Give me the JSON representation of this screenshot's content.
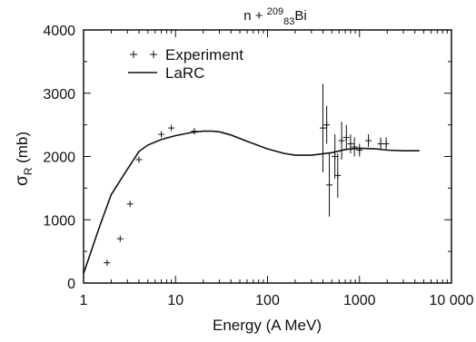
{
  "chart_data": {
    "type": "line",
    "title": {
      "prefix": "n + ",
      "mass_number": "209",
      "atomic_number": "83",
      "element": "Bi"
    },
    "xlabel": "Energy (A MeV)",
    "ylabel": {
      "symbol": "σ",
      "subscript": "R",
      "unit": " (mb)"
    },
    "x_scale": "log",
    "xlim": [
      1,
      10000
    ],
    "ylim": [
      0,
      4000
    ],
    "x_ticks": [
      {
        "value": 1,
        "label": "1"
      },
      {
        "value": 10,
        "label": "10"
      },
      {
        "value": 100,
        "label": "100"
      },
      {
        "value": 1000,
        "label": "1000"
      },
      {
        "value": 10000,
        "label": "10 000"
      }
    ],
    "y_ticks": [
      {
        "value": 0,
        "label": "0"
      },
      {
        "value": 1000,
        "label": "1000"
      },
      {
        "value": 2000,
        "label": "2000"
      },
      {
        "value": 3000,
        "label": "3000"
      },
      {
        "value": 4000,
        "label": "4000"
      }
    ],
    "grid": false,
    "legend_position": "top-left",
    "series": [
      {
        "name": "Experiment",
        "kind": "points",
        "marker": "+",
        "points": [
          {
            "x": 1.8,
            "y": 320
          },
          {
            "x": 2.5,
            "y": 700
          },
          {
            "x": 3.2,
            "y": 1250
          },
          {
            "x": 4.0,
            "y": 1950
          },
          {
            "x": 7.0,
            "y": 2350
          },
          {
            "x": 9.0,
            "y": 2450
          },
          {
            "x": 16.0,
            "y": 2400
          },
          {
            "x": 400,
            "y": 2450,
            "err": 700
          },
          {
            "x": 440,
            "y": 2500,
            "err": 300
          },
          {
            "x": 470,
            "y": 1550,
            "err": 500
          },
          {
            "x": 540,
            "y": 2000,
            "err": 350
          },
          {
            "x": 580,
            "y": 1700,
            "err": 350
          },
          {
            "x": 640,
            "y": 2250,
            "err": 300
          },
          {
            "x": 720,
            "y": 2300,
            "err": 200
          },
          {
            "x": 800,
            "y": 2200,
            "err": 150
          },
          {
            "x": 880,
            "y": 2150,
            "err": 150
          },
          {
            "x": 1000,
            "y": 2100,
            "err": 100
          },
          {
            "x": 1250,
            "y": 2250,
            "err": 100
          },
          {
            "x": 1700,
            "y": 2200,
            "err": 100
          },
          {
            "x": 1950,
            "y": 2200,
            "err": 100
          }
        ]
      },
      {
        "name": "LaRC",
        "kind": "line",
        "points": [
          {
            "x": 1.0,
            "y": 150
          },
          {
            "x": 1.5,
            "y": 900
          },
          {
            "x": 2.0,
            "y": 1400
          },
          {
            "x": 3.0,
            "y": 1800
          },
          {
            "x": 4.0,
            "y": 2080
          },
          {
            "x": 5.0,
            "y": 2180
          },
          {
            "x": 7.0,
            "y": 2270
          },
          {
            "x": 10.0,
            "y": 2330
          },
          {
            "x": 15.0,
            "y": 2380
          },
          {
            "x": 20.0,
            "y": 2400
          },
          {
            "x": 25.0,
            "y": 2400
          },
          {
            "x": 30.0,
            "y": 2390
          },
          {
            "x": 40.0,
            "y": 2340
          },
          {
            "x": 60.0,
            "y": 2240
          },
          {
            "x": 100.0,
            "y": 2120
          },
          {
            "x": 150.0,
            "y": 2050
          },
          {
            "x": 200.0,
            "y": 2020
          },
          {
            "x": 300.0,
            "y": 2020
          },
          {
            "x": 500.0,
            "y": 2060
          },
          {
            "x": 700.0,
            "y": 2110
          },
          {
            "x": 1000.0,
            "y": 2130
          },
          {
            "x": 1500.0,
            "y": 2120
          },
          {
            "x": 2000.0,
            "y": 2100
          },
          {
            "x": 3000.0,
            "y": 2090
          },
          {
            "x": 4500.0,
            "y": 2090
          }
        ]
      }
    ]
  }
}
